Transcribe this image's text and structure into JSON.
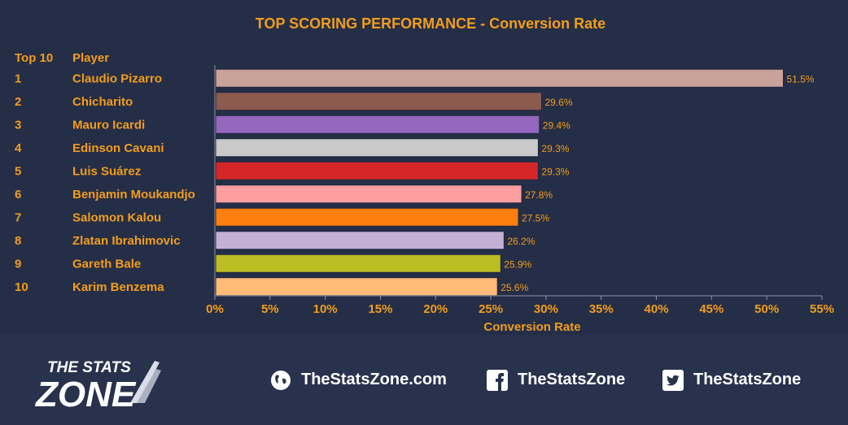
{
  "chart_data": {
    "type": "bar",
    "orientation": "horizontal",
    "title": "TOP SCORING PERFORMANCE - Conversion Rate",
    "rank_header": "Top 10",
    "player_header": "Player",
    "xlabel": "Conversion Rate",
    "xlim": [
      0,
      55
    ],
    "xticks": [
      "0%",
      "5%",
      "10%",
      "15%",
      "20%",
      "25%",
      "30%",
      "35%",
      "40%",
      "45%",
      "50%",
      "55%"
    ],
    "grid": false,
    "ranks": [
      "1",
      "2",
      "3",
      "4",
      "5",
      "6",
      "7",
      "8",
      "9",
      "10"
    ],
    "categories": [
      "Claudio Pizarro",
      "Chicharito",
      "Mauro Icardi",
      "Edinson Cavani",
      "Luis Suárez",
      "Benjamin Moukandjo",
      "Salomon Kalou",
      "Zlatan Ibrahimovic",
      "Gareth Bale",
      "Karim Benzema"
    ],
    "values": [
      51.5,
      29.6,
      29.4,
      29.3,
      29.3,
      27.8,
      27.5,
      26.2,
      25.9,
      25.6
    ],
    "value_labels": [
      "51.5%",
      "29.6%",
      "29.4%",
      "29.3%",
      "29.3%",
      "27.8%",
      "27.5%",
      "26.2%",
      "25.9%",
      "25.6%"
    ],
    "colors": [
      "#c9a29a",
      "#8c5a4e",
      "#9467bd",
      "#c9c9c9",
      "#d62728",
      "#ff9e9e",
      "#ff7f0e",
      "#c5b0d5",
      "#bcbd22",
      "#ffbb78"
    ]
  },
  "colors": {
    "accent": "#f29d1c",
    "background": "#252e47"
  },
  "footer": {
    "logo_line1": "THE STATS",
    "logo_line2": "ZONE",
    "website": "TheStatsZone.com",
    "facebook": "TheStatsZone",
    "twitter": "TheStatsZone"
  }
}
